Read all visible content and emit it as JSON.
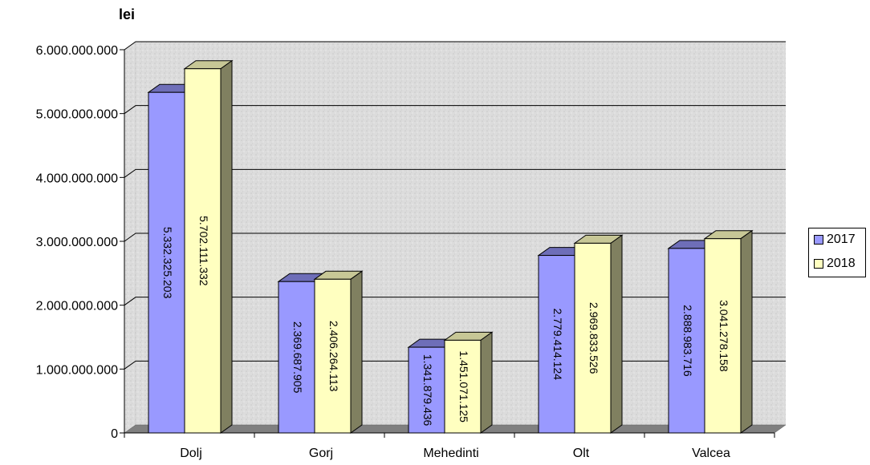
{
  "chart_data": {
    "type": "bar",
    "ylabel": "lei",
    "categories": [
      "Dolj",
      "Gorj",
      "Mehedinti",
      "Olt",
      "Valcea"
    ],
    "series": [
      {
        "name": "2017",
        "color": "#9999ff",
        "values": [
          5332325203,
          2369687905,
          1341879436,
          2779414124,
          2888983716
        ],
        "value_labels": [
          "5.332.325.203",
          "2.369.687.905",
          "1.341.879.436",
          "2.779.414.124",
          "2.888.983.716"
        ]
      },
      {
        "name": "2018",
        "color": "#ffffc0",
        "values": [
          5702111332,
          2406264113,
          1451071125,
          2969833526,
          3041278158
        ],
        "value_labels": [
          "5.702.111.332",
          "2.406.264.113",
          "1.451.071.125",
          "2.969.833.526",
          "3.041.278.158"
        ]
      }
    ],
    "ylim": [
      0,
      6000000000
    ],
    "yticks": [
      0,
      1000000000,
      2000000000,
      3000000000,
      4000000000,
      5000000000,
      6000000000
    ],
    "ytick_labels": [
      "0",
      "1.000.000.000",
      "2.000.000.000",
      "3.000.000.000",
      "4.000.000.000",
      "5.000.000.000",
      "6.000.000.000"
    ],
    "grid": true,
    "legend_position": "right",
    "style": "3d-clustered-column"
  }
}
